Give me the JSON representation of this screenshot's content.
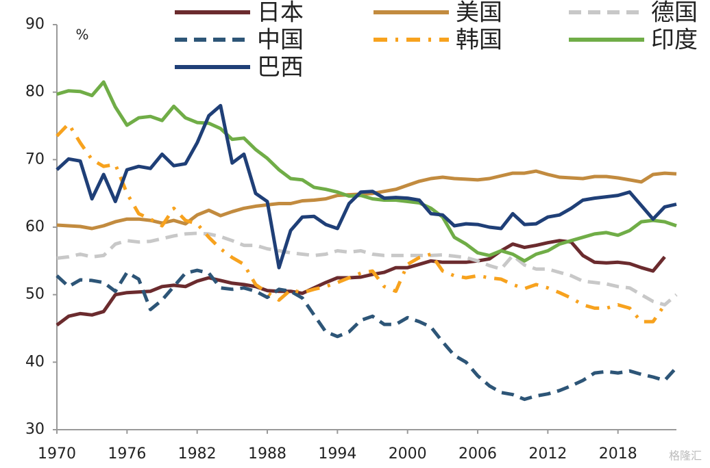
{
  "chart_data": {
    "type": "line",
    "unit_label": "%",
    "watermark": "格隆汇",
    "x": [
      1970,
      1971,
      1972,
      1973,
      1974,
      1975,
      1976,
      1977,
      1978,
      1979,
      1980,
      1981,
      1982,
      1983,
      1984,
      1985,
      1986,
      1987,
      1988,
      1989,
      1990,
      1991,
      1992,
      1993,
      1994,
      1995,
      1996,
      1997,
      1998,
      1999,
      2000,
      2001,
      2002,
      2003,
      2004,
      2005,
      2006,
      2007,
      2008,
      2009,
      2010,
      2011,
      2012,
      2013,
      2014,
      2015,
      2016,
      2017,
      2018,
      2019,
      2020,
      2021,
      2022,
      2023
    ],
    "xlim": [
      1970,
      2023
    ],
    "xticks": [
      1970,
      1976,
      1982,
      1988,
      1994,
      2000,
      2006,
      2012,
      2018
    ],
    "ylim": [
      30,
      90
    ],
    "yticks": [
      30,
      40,
      50,
      60,
      70,
      80,
      90
    ],
    "series": [
      {
        "name": "日本",
        "color": "#6b2b2e",
        "style": "solid",
        "values": [
          45.5,
          46.8,
          47.2,
          47,
          47.5,
          50,
          50.3,
          50.4,
          50.5,
          51.2,
          51.4,
          51.2,
          52,
          52.5,
          52.1,
          51.7,
          51.5,
          51.2,
          50.6,
          50.5,
          50.5,
          50.2,
          51,
          51.8,
          52.5,
          52.5,
          52.6,
          53,
          53.3,
          54,
          54,
          54.5,
          55,
          54.8,
          54.8,
          54.8,
          55,
          55.3,
          56.5,
          57.5,
          57,
          57.3,
          57.7,
          58,
          57.8,
          55.8,
          54.8,
          54.7,
          54.8,
          54.6,
          54,
          53.5,
          55.6,
          null
        ]
      },
      {
        "name": "美国",
        "color": "#c28b3f",
        "style": "solid",
        "values": [
          60.3,
          60.2,
          60.1,
          59.8,
          60.2,
          60.8,
          61.2,
          61.2,
          61,
          60.6,
          61,
          60.5,
          61.8,
          62.5,
          61.7,
          62.3,
          62.8,
          63.1,
          63.3,
          63.5,
          63.5,
          63.9,
          64,
          64.2,
          64.7,
          64.8,
          64.9,
          65,
          65.3,
          65.6,
          66.2,
          66.8,
          67.2,
          67.4,
          67.2,
          67.1,
          67,
          67.2,
          67.6,
          68,
          68,
          68.3,
          67.8,
          67.4,
          67.3,
          67.2,
          67.5,
          67.5,
          67.3,
          67,
          66.7,
          67.8,
          68,
          67.9
        ]
      },
      {
        "name": "德国",
        "color": "#c8c8c8",
        "style": "dashed",
        "values": [
          55.4,
          55.6,
          56,
          55.6,
          55.8,
          57.5,
          58,
          57.8,
          57.9,
          58.3,
          58.7,
          59,
          59.1,
          59,
          58.6,
          58,
          57.3,
          57.3,
          56.8,
          56.5,
          56.2,
          56,
          55.8,
          56,
          56.5,
          56.3,
          56.5,
          56,
          55.8,
          55.8,
          55.8,
          55.8,
          55.8,
          55.9,
          55.7,
          55.5,
          55,
          54.3,
          53.8,
          55.8,
          54.4,
          53.8,
          53.8,
          53.3,
          52.8,
          52,
          51.8,
          51.6,
          51.2,
          51,
          50,
          49,
          48.5,
          50
        ]
      },
      {
        "name": "中国",
        "color": "#2d5577",
        "style": "dashed",
        "values": [
          52.8,
          51.2,
          52.2,
          52.1,
          51.8,
          50.5,
          53.3,
          52.3,
          47.8,
          49.2,
          51.2,
          53.2,
          53.6,
          53.2,
          51,
          50.8,
          51,
          50.5,
          49.6,
          50.8,
          50.5,
          49.5,
          47,
          44.5,
          43.8,
          44.5,
          46.2,
          46.8,
          45.6,
          45.6,
          46.6,
          46,
          45.2,
          43,
          41,
          40,
          38,
          36.5,
          35.5,
          35.2,
          34.5,
          35,
          35.3,
          35.8,
          36.5,
          37.3,
          38.4,
          38.6,
          38.4,
          38.7,
          38.2,
          37.8,
          37.3,
          39.2
        ]
      },
      {
        "name": "韩国",
        "color": "#f7a21e",
        "style": "dashdot",
        "values": [
          73.5,
          75.3,
          72.5,
          70,
          69,
          69.3,
          65,
          62,
          61.2,
          60.2,
          62.8,
          61,
          60.5,
          58.5,
          56.8,
          55.5,
          54.5,
          51.5,
          50.3,
          49.2,
          50.7,
          50.3,
          50.8,
          51.2,
          51.8,
          52.5,
          53.2,
          53.5,
          51.2,
          50.5,
          54.5,
          55.5,
          56,
          53.5,
          52.8,
          52.5,
          52.8,
          52.5,
          52.3,
          51.5,
          50.9,
          51.5,
          51,
          50.3,
          49.5,
          48.5,
          48,
          48,
          48.5,
          48,
          46,
          46,
          48.5,
          null
        ]
      },
      {
        "name": "印度",
        "color": "#70ad47",
        "style": "solid",
        "values": [
          79.7,
          80.2,
          80.1,
          79.5,
          81.5,
          77.8,
          75.1,
          76.2,
          76.4,
          75.8,
          77.9,
          76.2,
          75.5,
          75.4,
          74.6,
          73,
          73.2,
          71.5,
          70.2,
          68.5,
          67.2,
          67,
          65.9,
          65.6,
          65.2,
          64.6,
          64.7,
          64.2,
          64,
          64,
          63.8,
          63.6,
          62.8,
          61.5,
          58.5,
          57.5,
          56.2,
          55.8,
          56.5,
          56,
          55,
          56,
          56.5,
          57.5,
          58,
          58.5,
          59,
          59.2,
          58.8,
          59.5,
          60.8,
          61,
          60.8,
          60.2
        ]
      },
      {
        "name": "巴西",
        "color": "#1f3f77",
        "style": "solid",
        "values": [
          68.5,
          70.1,
          69.8,
          64.2,
          67.8,
          63.8,
          68.5,
          69,
          68.7,
          70.8,
          69.1,
          69.4,
          72.5,
          76.5,
          78,
          69.5,
          70.8,
          65,
          63.8,
          54,
          59.5,
          61.5,
          61.6,
          60.4,
          59.8,
          63.5,
          65.2,
          65.3,
          64.3,
          64.4,
          64.3,
          64,
          62,
          61.8,
          60.2,
          60.5,
          60.4,
          60,
          59.8,
          62,
          60.4,
          60.5,
          61.5,
          61.8,
          62.8,
          64,
          64.3,
          64.5,
          64.7,
          65.2,
          63.2,
          61.2,
          63,
          63.4
        ]
      }
    ]
  }
}
